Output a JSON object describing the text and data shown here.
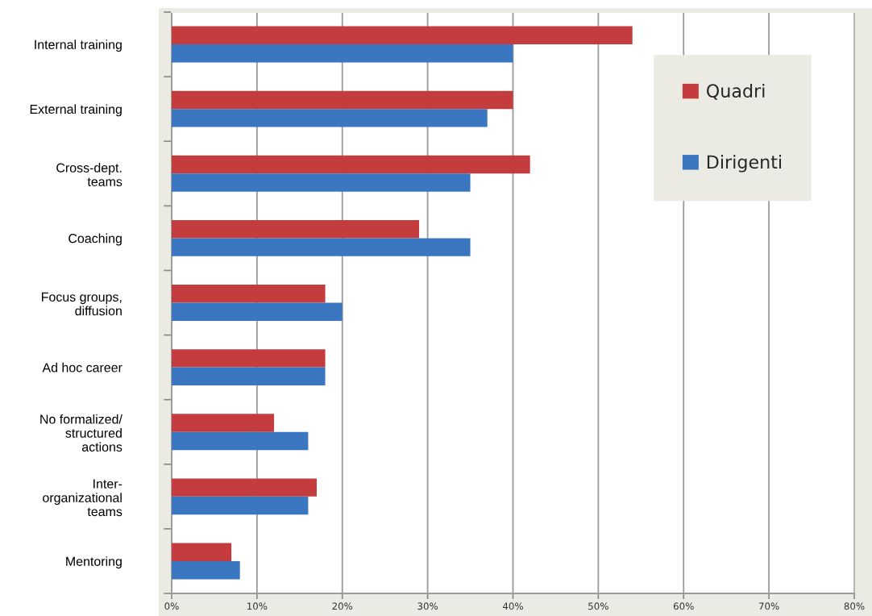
{
  "chart_data": {
    "type": "bar",
    "orientation": "horizontal",
    "categories": [
      "Internal training",
      "External training",
      "Cross-dept.\nteams",
      "Coaching",
      "Focus groups,\ndiffusion",
      "Ad hoc career",
      "No formalized/\nstructured\nactions",
      "Inter-\norganizational\nteams",
      "Mentoring"
    ],
    "series": [
      {
        "name": "Quadri",
        "color": "#c43c3d",
        "values": [
          54,
          40,
          42,
          29,
          18,
          18,
          12,
          17,
          7
        ]
      },
      {
        "name": "Dirigenti",
        "color": "#3b77c1",
        "values": [
          40,
          37,
          35,
          35,
          20,
          18,
          16,
          16,
          8
        ]
      }
    ],
    "xlim": [
      0,
      80
    ],
    "xticks": [
      {
        "value": 0,
        "label": "0%"
      },
      {
        "value": 10,
        "label": "10%"
      },
      {
        "value": 20,
        "label": "20%"
      },
      {
        "value": 30,
        "label": "30%"
      },
      {
        "value": 40,
        "label": "40%"
      },
      {
        "value": 50,
        "label": "50%"
      },
      {
        "value": 60,
        "label": "60%"
      },
      {
        "value": 70,
        "label": "70%"
      },
      {
        "value": 80,
        "label": "80%"
      }
    ],
    "grid": "x",
    "legend": "top right"
  }
}
